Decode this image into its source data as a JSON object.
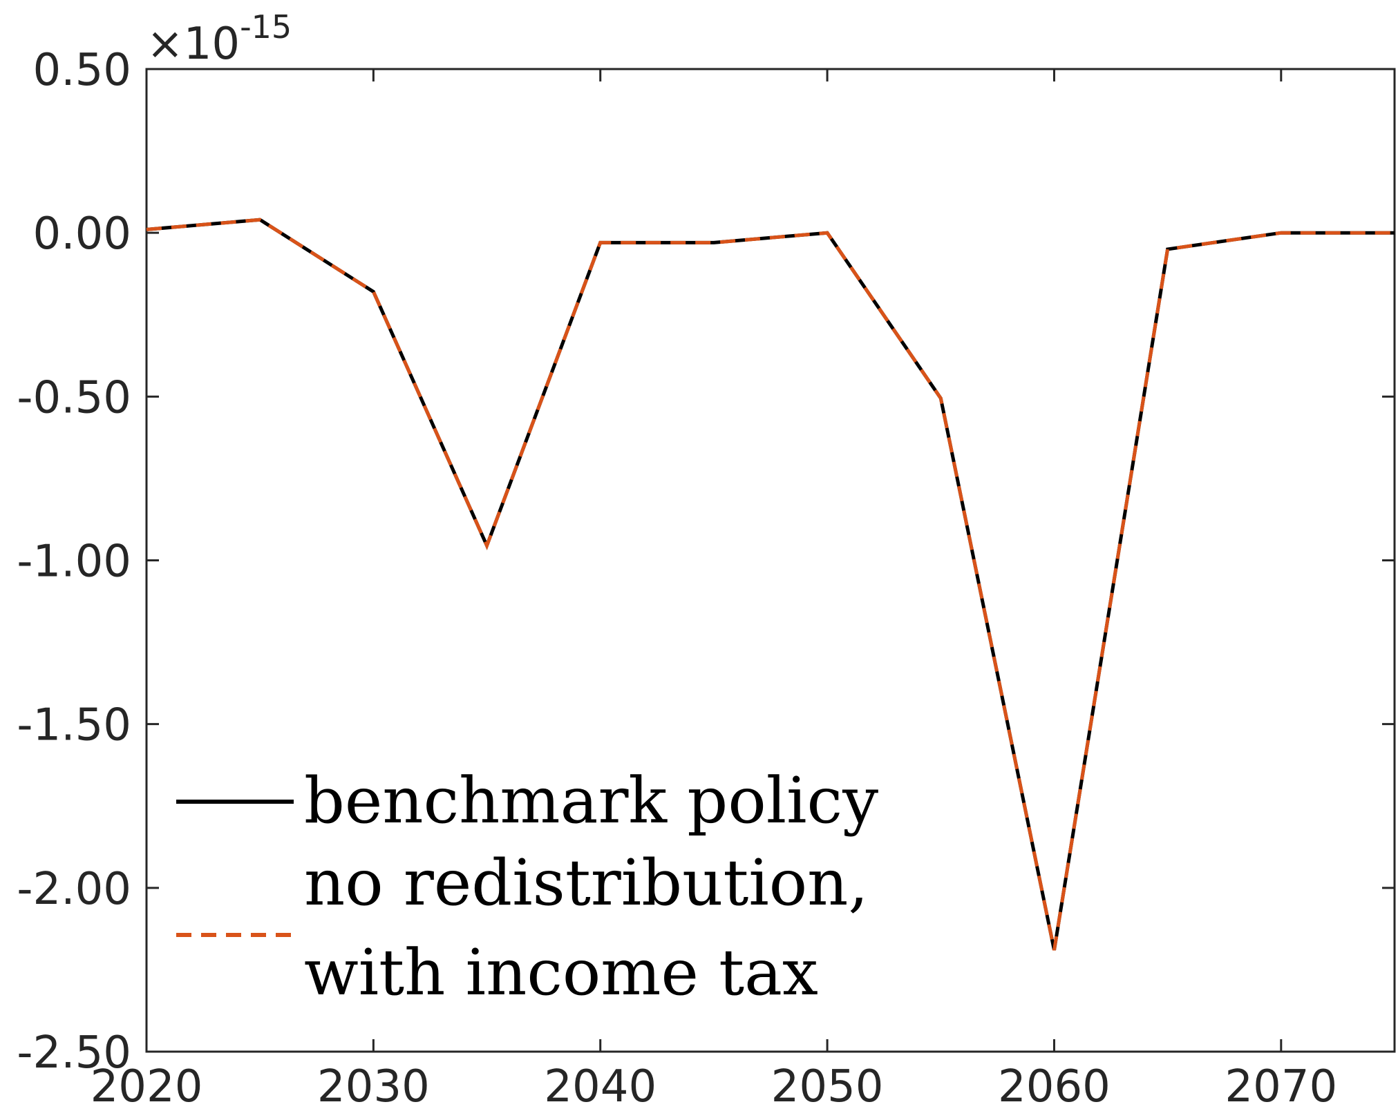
{
  "chart_data": {
    "type": "line",
    "x": [
      2020,
      2025,
      2030,
      2035,
      2040,
      2045,
      2050,
      2055,
      2060,
      2065,
      2070,
      2075
    ],
    "series": [
      {
        "name": "benchmark policy",
        "color": "#000000",
        "style": "solid",
        "values": [
          0.01,
          0.04,
          -0.18,
          -0.955,
          -0.03,
          -0.03,
          0.0,
          -0.505,
          -2.19,
          -0.05,
          0.0,
          0.0
        ]
      },
      {
        "name": "no redistribution, with income tax",
        "name_lines": [
          "no redistribution,",
          "with income tax"
        ],
        "color": "#d95319",
        "style": "dashed",
        "values": [
          0.01,
          0.04,
          -0.18,
          -0.955,
          -0.03,
          -0.03,
          0.0,
          -0.505,
          -2.19,
          -0.05,
          0.0,
          0.0
        ]
      }
    ],
    "xlim": [
      2020,
      2075
    ],
    "ylim": [
      -2.5,
      0.5
    ],
    "xticks": [
      2020,
      2030,
      2040,
      2050,
      2060,
      2070
    ],
    "yticks": [
      0.5,
      0.0,
      -0.5,
      -1.0,
      -1.5,
      -2.0,
      -2.5
    ],
    "ytick_labels": [
      "0.50",
      "0.00",
      "-0.50",
      "-1.00",
      "-1.50",
      "-2.00",
      "-2.50"
    ],
    "y_exponent_prefix": "×10",
    "y_exponent": "-15",
    "title": "",
    "xlabel": "",
    "ylabel": "",
    "grid": false,
    "legend_position": "bottom-left"
  }
}
